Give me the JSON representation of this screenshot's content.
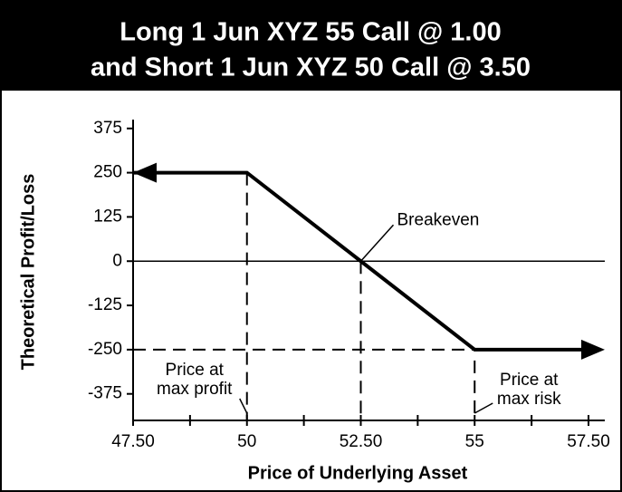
{
  "chart_data": {
    "type": "line",
    "title": [
      "Long 1 Jun XYZ 55 Call @ 1.00",
      "and Short 1 Jun XYZ 50 Call @ 3.50"
    ],
    "x_label": "Price of Underlying Asset",
    "y_label": "Theoretical Profit/Loss",
    "x": [
      47.5,
      50,
      52.5,
      55,
      57.5
    ],
    "series": [
      {
        "color": "#000000",
        "values": [
          250,
          250,
          0,
          -250,
          -250
        ]
      }
    ],
    "xlim": [
      47.5,
      57.5
    ],
    "xticks": [
      {
        "value": 47.5,
        "label": "47.50"
      },
      50,
      {
        "value": 52.5,
        "label": "52.50"
      },
      55,
      {
        "value": 57.5,
        "label": "57.50"
      }
    ],
    "ylim": [
      -450,
      400
    ],
    "yticks": [
      375,
      250,
      125,
      0,
      -125,
      -250,
      -375
    ],
    "annotations": [
      [
        "Breakeven"
      ],
      [
        "Price at",
        "max profit"
      ],
      [
        "Price at",
        "max risk"
      ]
    ]
  }
}
